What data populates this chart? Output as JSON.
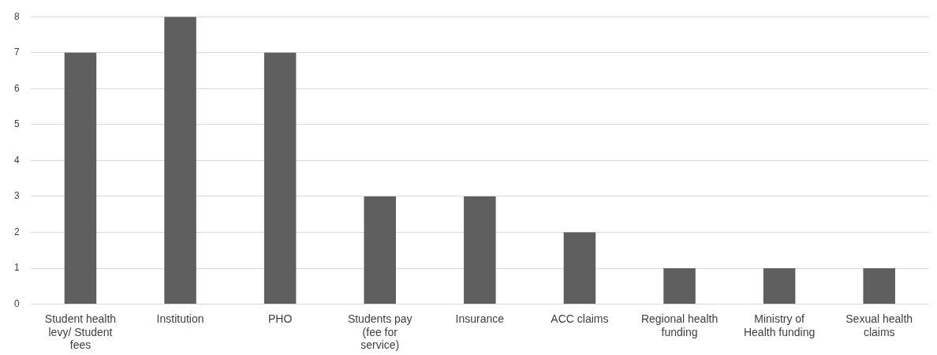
{
  "chart_data": {
    "type": "bar",
    "categories": [
      "Student health levy/ Student fees",
      "Institution",
      "PHO",
      "Students pay (fee for service)",
      "Insurance",
      "ACC claims",
      "Regional health funding",
      "Ministry of Health funding",
      "Sexual health claims"
    ],
    "values": [
      7,
      8,
      7,
      3,
      3,
      2,
      1,
      1,
      1
    ],
    "color": "#5f5f5f",
    "ylim": [
      0,
      8
    ],
    "yticks": [
      0,
      1,
      2,
      3,
      4,
      5,
      6,
      7,
      8
    ],
    "grid": "y",
    "legend": false
  }
}
